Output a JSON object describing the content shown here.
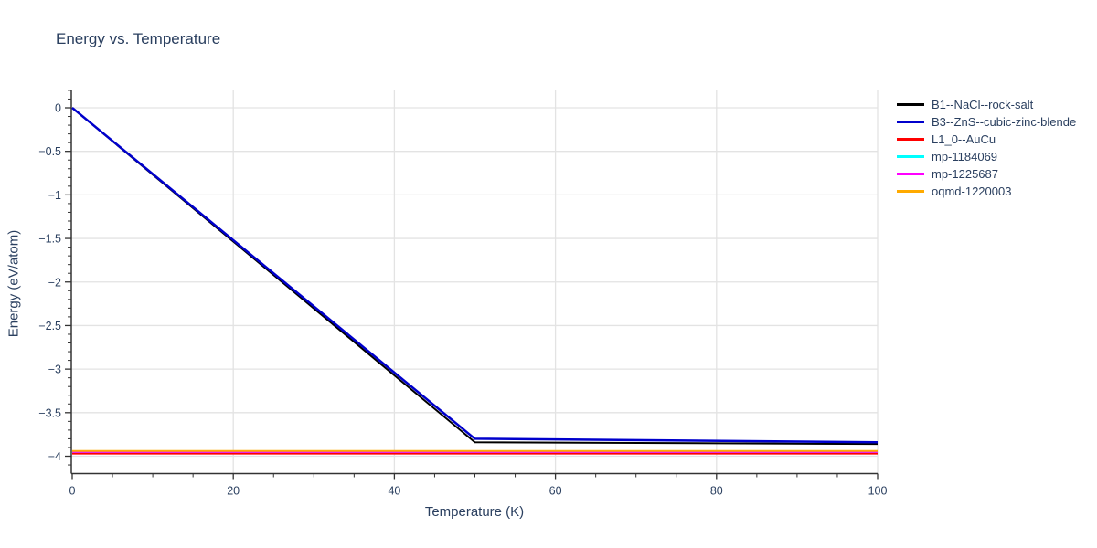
{
  "title": "Energy vs. Temperature",
  "colors": {
    "text": "#2a3f5f",
    "axis_line": "#333333",
    "gridline": "#e3e3e3",
    "background": "#ffffff"
  },
  "chart_data": {
    "type": "line",
    "title": "Energy vs. Temperature",
    "xlabel": "Temperature (K)",
    "ylabel": "Energy (eV/atom)",
    "xlim": [
      0,
      100
    ],
    "ylim": [
      -4.2,
      0.2
    ],
    "grid": true,
    "legend_position": "outside-top-right",
    "x_minor_step": 5,
    "y_minor_step": 0.1,
    "xticks": [
      [
        0,
        "0"
      ],
      [
        20,
        "20"
      ],
      [
        40,
        "40"
      ],
      [
        60,
        "60"
      ],
      [
        80,
        "80"
      ],
      [
        100,
        "100"
      ]
    ],
    "yticks": [
      [
        0,
        "0"
      ],
      [
        -0.5,
        "−0.5"
      ],
      [
        -1,
        "−1"
      ],
      [
        -1.5,
        "−1.5"
      ],
      [
        -2,
        "−2"
      ],
      [
        -2.5,
        "−2.5"
      ],
      [
        -3,
        "−3"
      ],
      [
        -3.5,
        "−3.5"
      ],
      [
        -4,
        "−4"
      ]
    ],
    "series": [
      {
        "name": "B1--NaCl--rock-salt",
        "color": "#000000",
        "width": 2,
        "points": [
          [
            0,
            0
          ],
          [
            50,
            -3.84
          ],
          [
            100,
            -3.86
          ]
        ]
      },
      {
        "name": "B3--ZnS--cubic-zinc-blende",
        "color": "#0000cc",
        "width": 2.5,
        "points": [
          [
            0,
            0
          ],
          [
            50,
            -3.8
          ],
          [
            100,
            -3.84
          ]
        ]
      },
      {
        "name": "L1_0--AuCu",
        "color": "#ff0000",
        "width": 2,
        "points": [
          [
            0,
            -3.97
          ],
          [
            100,
            -3.97
          ]
        ]
      },
      {
        "name": "mp-1184069",
        "color": "#00ffff",
        "width": 2,
        "points": [
          [
            0,
            -3.95
          ],
          [
            100,
            -3.95
          ]
        ]
      },
      {
        "name": "mp-1225687",
        "color": "#ff00ff",
        "width": 2,
        "points": [
          [
            0,
            -3.95
          ],
          [
            100,
            -3.95
          ]
        ]
      },
      {
        "name": "oqmd-1220003",
        "color": "#ffaa00",
        "width": 2,
        "points": [
          [
            0,
            -3.94
          ],
          [
            100,
            -3.94
          ]
        ]
      }
    ]
  }
}
